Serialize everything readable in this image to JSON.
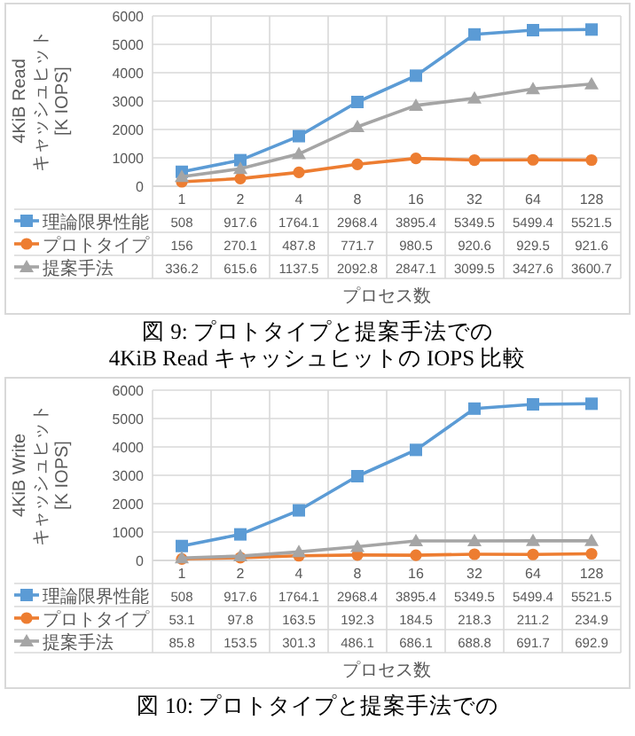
{
  "chart_data": [
    {
      "type": "line",
      "xlabel": "プロセス数",
      "ylabel": "4KiB Read キャッシュヒット [K IOPS]",
      "categories": [
        "1",
        "2",
        "4",
        "8",
        "16",
        "32",
        "64",
        "128"
      ],
      "ylim": [
        0,
        6000
      ],
      "yticks": [
        0,
        1000,
        2000,
        3000,
        4000,
        5000,
        6000
      ],
      "grid": true,
      "legend": "bottom",
      "data_labels": true,
      "annotations": [
        "図 9: プロトタイプと提案手法での",
        "4KiB Read キャッシュヒットの IOPS 比較"
      ],
      "series": [
        {
          "name": "理論限界性能",
          "color": "#5b9bd5",
          "marker": "square",
          "values": [
            508,
            917.6,
            1764.1,
            2968.4,
            3895.4,
            5349.5,
            5499.4,
            5521.5
          ]
        },
        {
          "name": "プロトタイプ",
          "color": "#ed7d31",
          "marker": "circle",
          "values": [
            156,
            270.1,
            487.8,
            771.7,
            980.5,
            920.6,
            929.5,
            921.6
          ]
        },
        {
          "name": "提案手法",
          "color": "#a5a5a5",
          "marker": "triangle",
          "values": [
            336.2,
            615.6,
            1137.5,
            2092.8,
            2847.1,
            3099.5,
            3427.6,
            3600.7
          ]
        }
      ]
    },
    {
      "type": "line",
      "xlabel": "プロセス数",
      "ylabel": "4KiB Write キャッシュヒット [K IOPS]",
      "categories": [
        "1",
        "2",
        "4",
        "8",
        "16",
        "32",
        "64",
        "128"
      ],
      "ylim": [
        0,
        6000
      ],
      "yticks": [
        0,
        1000,
        2000,
        3000,
        4000,
        5000,
        6000
      ],
      "grid": true,
      "legend": "bottom",
      "data_labels": true,
      "annotations": [
        "図 10: プロトタイプと提案手法での"
      ],
      "series": [
        {
          "name": "理論限界性能",
          "color": "#5b9bd5",
          "marker": "square",
          "values": [
            508,
            917.6,
            1764.1,
            2968.4,
            3895.4,
            5349.5,
            5499.4,
            5521.5
          ]
        },
        {
          "name": "プロトタイプ",
          "color": "#ed7d31",
          "marker": "circle",
          "values": [
            53.1,
            97.8,
            163.5,
            192.3,
            184.5,
            218.3,
            211.2,
            234.9
          ]
        },
        {
          "name": "提案手法",
          "color": "#a5a5a5",
          "marker": "triangle",
          "values": [
            85.8,
            153.5,
            301.3,
            486.1,
            686.1,
            688.8,
            691.7,
            692.9
          ]
        }
      ]
    }
  ]
}
